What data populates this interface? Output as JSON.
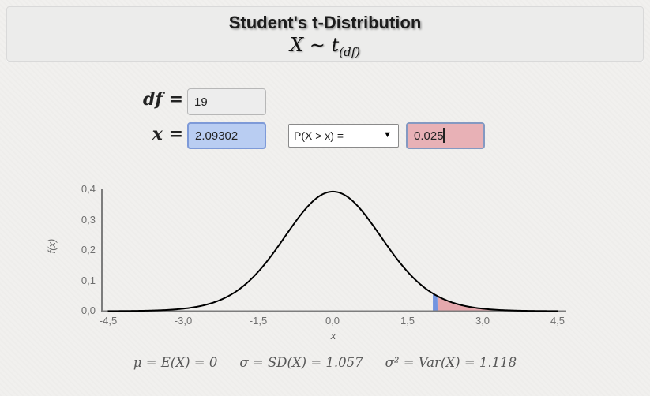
{
  "header": {
    "title": "Student's t-Distribution",
    "formula": {
      "lhs": "X",
      "relation": "∼",
      "symbol": "t",
      "subscript": "(df)"
    }
  },
  "controls": {
    "df": {
      "symbol": "df",
      "eq": "=",
      "value": "19"
    },
    "x": {
      "symbol": "x",
      "eq": "=",
      "value": "2.09302"
    },
    "probability": {
      "selected_option": "P(X > x) =",
      "value": "0.025"
    }
  },
  "chart_data": {
    "type": "line",
    "distribution": "student-t",
    "df": 19,
    "pdf_peak": 0.3937,
    "marker_x": 2.09302,
    "tail_probability": 0.025,
    "shaded_from": 2.09302,
    "shaded_to": 4.5,
    "xlabel": "x",
    "ylabel": "f(x)",
    "xlim": [
      -4.5,
      4.5
    ],
    "ylim": [
      0,
      0.4
    ],
    "x_ticks": [
      "-4,5",
      "-3,0",
      "-1,5",
      "0,0",
      "1,5",
      "3,0",
      "4,5"
    ],
    "x_tick_values": [
      -4.5,
      -3,
      -1.5,
      0,
      1.5,
      3,
      4.5
    ],
    "y_ticks": [
      "0,0",
      "0,1",
      "0,2",
      "0,3",
      "0,4"
    ],
    "y_tick_values": [
      0,
      0.1,
      0.2,
      0.3,
      0.4
    ],
    "grid": false,
    "legend": false,
    "colors": {
      "curve": "#000000",
      "axis": "#7d7d7d",
      "marker": "#7394e0",
      "shaded": "#e5a8ad",
      "tick_text": "#6e6e6e"
    }
  },
  "stats": {
    "mean": "μ = E(X) = 0",
    "sd": "σ = SD(X) = 1.057",
    "variance": "σ² = Var(X) = 1.118"
  }
}
